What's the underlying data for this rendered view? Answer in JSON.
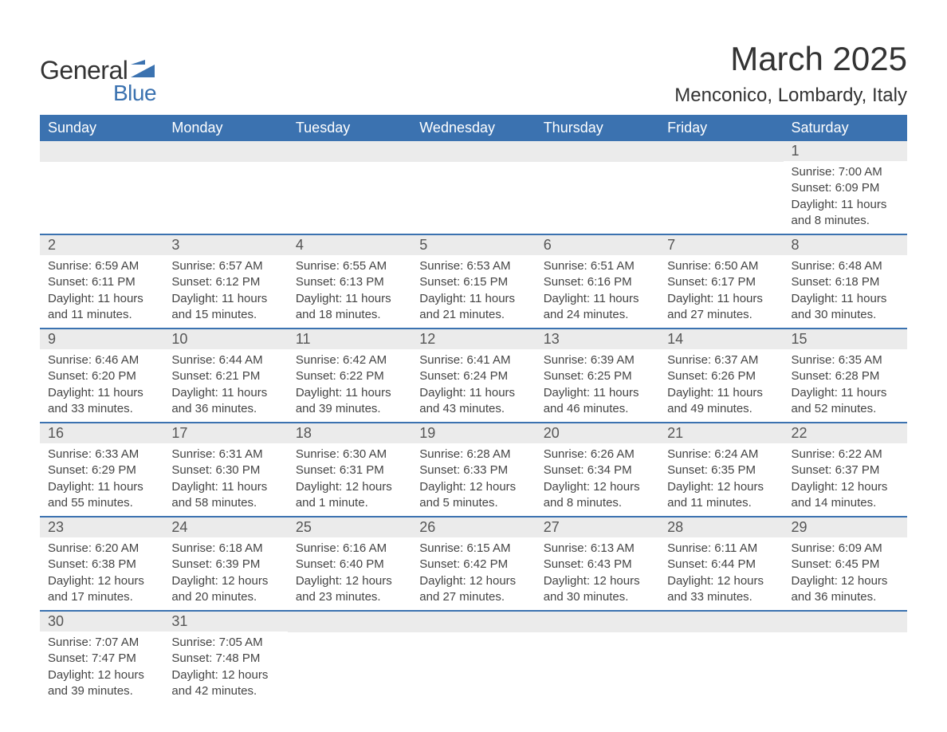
{
  "logo": {
    "general": "General",
    "blue": "Blue",
    "mark_color": "#3b72b0"
  },
  "title": {
    "month": "March 2025",
    "location": "Menconico, Lombardy, Italy"
  },
  "colors": {
    "header_bg": "#3b72b0",
    "header_text": "#ffffff",
    "daynum_bg": "#ebebeb",
    "row_border": "#3b72b0",
    "body_text": "#444444"
  },
  "day_headers": [
    "Sunday",
    "Monday",
    "Tuesday",
    "Wednesday",
    "Thursday",
    "Friday",
    "Saturday"
  ],
  "weeks": [
    [
      {
        "day": "",
        "sunrise": "",
        "sunset": "",
        "daylight": ""
      },
      {
        "day": "",
        "sunrise": "",
        "sunset": "",
        "daylight": ""
      },
      {
        "day": "",
        "sunrise": "",
        "sunset": "",
        "daylight": ""
      },
      {
        "day": "",
        "sunrise": "",
        "sunset": "",
        "daylight": ""
      },
      {
        "day": "",
        "sunrise": "",
        "sunset": "",
        "daylight": ""
      },
      {
        "day": "",
        "sunrise": "",
        "sunset": "",
        "daylight": ""
      },
      {
        "day": "1",
        "sunrise": "Sunrise: 7:00 AM",
        "sunset": "Sunset: 6:09 PM",
        "daylight": "Daylight: 11 hours and 8 minutes."
      }
    ],
    [
      {
        "day": "2",
        "sunrise": "Sunrise: 6:59 AM",
        "sunset": "Sunset: 6:11 PM",
        "daylight": "Daylight: 11 hours and 11 minutes."
      },
      {
        "day": "3",
        "sunrise": "Sunrise: 6:57 AM",
        "sunset": "Sunset: 6:12 PM",
        "daylight": "Daylight: 11 hours and 15 minutes."
      },
      {
        "day": "4",
        "sunrise": "Sunrise: 6:55 AM",
        "sunset": "Sunset: 6:13 PM",
        "daylight": "Daylight: 11 hours and 18 minutes."
      },
      {
        "day": "5",
        "sunrise": "Sunrise: 6:53 AM",
        "sunset": "Sunset: 6:15 PM",
        "daylight": "Daylight: 11 hours and 21 minutes."
      },
      {
        "day": "6",
        "sunrise": "Sunrise: 6:51 AM",
        "sunset": "Sunset: 6:16 PM",
        "daylight": "Daylight: 11 hours and 24 minutes."
      },
      {
        "day": "7",
        "sunrise": "Sunrise: 6:50 AM",
        "sunset": "Sunset: 6:17 PM",
        "daylight": "Daylight: 11 hours and 27 minutes."
      },
      {
        "day": "8",
        "sunrise": "Sunrise: 6:48 AM",
        "sunset": "Sunset: 6:18 PM",
        "daylight": "Daylight: 11 hours and 30 minutes."
      }
    ],
    [
      {
        "day": "9",
        "sunrise": "Sunrise: 6:46 AM",
        "sunset": "Sunset: 6:20 PM",
        "daylight": "Daylight: 11 hours and 33 minutes."
      },
      {
        "day": "10",
        "sunrise": "Sunrise: 6:44 AM",
        "sunset": "Sunset: 6:21 PM",
        "daylight": "Daylight: 11 hours and 36 minutes."
      },
      {
        "day": "11",
        "sunrise": "Sunrise: 6:42 AM",
        "sunset": "Sunset: 6:22 PM",
        "daylight": "Daylight: 11 hours and 39 minutes."
      },
      {
        "day": "12",
        "sunrise": "Sunrise: 6:41 AM",
        "sunset": "Sunset: 6:24 PM",
        "daylight": "Daylight: 11 hours and 43 minutes."
      },
      {
        "day": "13",
        "sunrise": "Sunrise: 6:39 AM",
        "sunset": "Sunset: 6:25 PM",
        "daylight": "Daylight: 11 hours and 46 minutes."
      },
      {
        "day": "14",
        "sunrise": "Sunrise: 6:37 AM",
        "sunset": "Sunset: 6:26 PM",
        "daylight": "Daylight: 11 hours and 49 minutes."
      },
      {
        "day": "15",
        "sunrise": "Sunrise: 6:35 AM",
        "sunset": "Sunset: 6:28 PM",
        "daylight": "Daylight: 11 hours and 52 minutes."
      }
    ],
    [
      {
        "day": "16",
        "sunrise": "Sunrise: 6:33 AM",
        "sunset": "Sunset: 6:29 PM",
        "daylight": "Daylight: 11 hours and 55 minutes."
      },
      {
        "day": "17",
        "sunrise": "Sunrise: 6:31 AM",
        "sunset": "Sunset: 6:30 PM",
        "daylight": "Daylight: 11 hours and 58 minutes."
      },
      {
        "day": "18",
        "sunrise": "Sunrise: 6:30 AM",
        "sunset": "Sunset: 6:31 PM",
        "daylight": "Daylight: 12 hours and 1 minute."
      },
      {
        "day": "19",
        "sunrise": "Sunrise: 6:28 AM",
        "sunset": "Sunset: 6:33 PM",
        "daylight": "Daylight: 12 hours and 5 minutes."
      },
      {
        "day": "20",
        "sunrise": "Sunrise: 6:26 AM",
        "sunset": "Sunset: 6:34 PM",
        "daylight": "Daylight: 12 hours and 8 minutes."
      },
      {
        "day": "21",
        "sunrise": "Sunrise: 6:24 AM",
        "sunset": "Sunset: 6:35 PM",
        "daylight": "Daylight: 12 hours and 11 minutes."
      },
      {
        "day": "22",
        "sunrise": "Sunrise: 6:22 AM",
        "sunset": "Sunset: 6:37 PM",
        "daylight": "Daylight: 12 hours and 14 minutes."
      }
    ],
    [
      {
        "day": "23",
        "sunrise": "Sunrise: 6:20 AM",
        "sunset": "Sunset: 6:38 PM",
        "daylight": "Daylight: 12 hours and 17 minutes."
      },
      {
        "day": "24",
        "sunrise": "Sunrise: 6:18 AM",
        "sunset": "Sunset: 6:39 PM",
        "daylight": "Daylight: 12 hours and 20 minutes."
      },
      {
        "day": "25",
        "sunrise": "Sunrise: 6:16 AM",
        "sunset": "Sunset: 6:40 PM",
        "daylight": "Daylight: 12 hours and 23 minutes."
      },
      {
        "day": "26",
        "sunrise": "Sunrise: 6:15 AM",
        "sunset": "Sunset: 6:42 PM",
        "daylight": "Daylight: 12 hours and 27 minutes."
      },
      {
        "day": "27",
        "sunrise": "Sunrise: 6:13 AM",
        "sunset": "Sunset: 6:43 PM",
        "daylight": "Daylight: 12 hours and 30 minutes."
      },
      {
        "day": "28",
        "sunrise": "Sunrise: 6:11 AM",
        "sunset": "Sunset: 6:44 PM",
        "daylight": "Daylight: 12 hours and 33 minutes."
      },
      {
        "day": "29",
        "sunrise": "Sunrise: 6:09 AM",
        "sunset": "Sunset: 6:45 PM",
        "daylight": "Daylight: 12 hours and 36 minutes."
      }
    ],
    [
      {
        "day": "30",
        "sunrise": "Sunrise: 7:07 AM",
        "sunset": "Sunset: 7:47 PM",
        "daylight": "Daylight: 12 hours and 39 minutes."
      },
      {
        "day": "31",
        "sunrise": "Sunrise: 7:05 AM",
        "sunset": "Sunset: 7:48 PM",
        "daylight": "Daylight: 12 hours and 42 minutes."
      },
      {
        "day": "",
        "sunrise": "",
        "sunset": "",
        "daylight": ""
      },
      {
        "day": "",
        "sunrise": "",
        "sunset": "",
        "daylight": ""
      },
      {
        "day": "",
        "sunrise": "",
        "sunset": "",
        "daylight": ""
      },
      {
        "day": "",
        "sunrise": "",
        "sunset": "",
        "daylight": ""
      },
      {
        "day": "",
        "sunrise": "",
        "sunset": "",
        "daylight": ""
      }
    ]
  ]
}
